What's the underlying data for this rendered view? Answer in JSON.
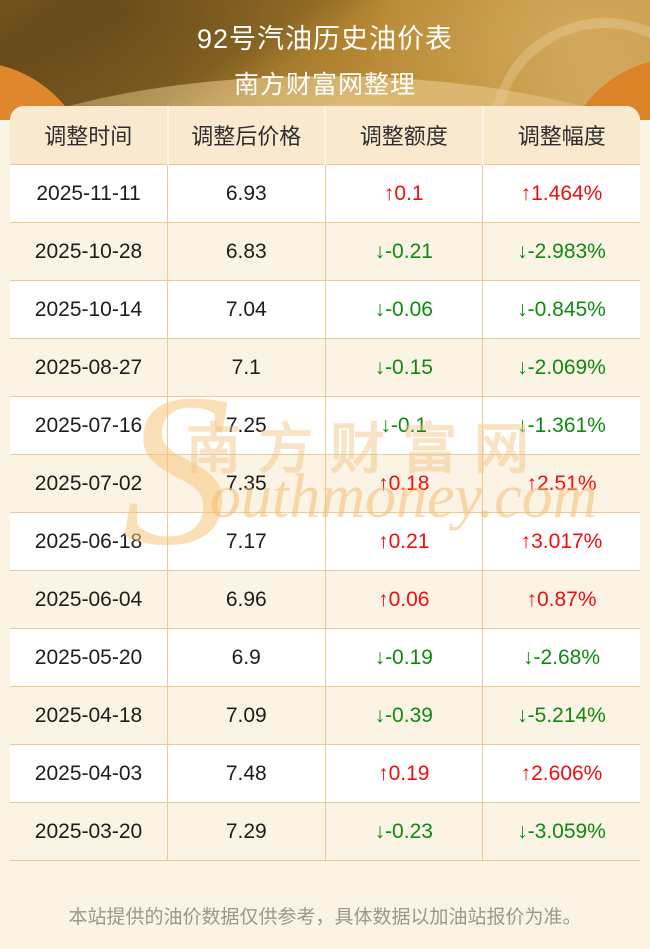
{
  "header": {
    "title_line1": "92号汽油历史油价表",
    "title_line2": "南方财富网整理"
  },
  "table": {
    "columns": [
      "调整时间",
      "调整后价格",
      "调整额度",
      "调整幅度"
    ],
    "rows": [
      {
        "date": "2025-11-11",
        "price": "6.93",
        "change": "↑0.1",
        "percent": "↑1.464%",
        "direction": "up"
      },
      {
        "date": "2025-10-28",
        "price": "6.83",
        "change": "↓-0.21",
        "percent": "↓-2.983%",
        "direction": "down"
      },
      {
        "date": "2025-10-14",
        "price": "7.04",
        "change": "↓-0.06",
        "percent": "↓-0.845%",
        "direction": "down"
      },
      {
        "date": "2025-08-27",
        "price": "7.1",
        "change": "↓-0.15",
        "percent": "↓-2.069%",
        "direction": "down"
      },
      {
        "date": "2025-07-16",
        "price": "7.25",
        "change": "↓-0.1",
        "percent": "↓-1.361%",
        "direction": "down"
      },
      {
        "date": "2025-07-02",
        "price": "7.35",
        "change": "↑0.18",
        "percent": "↑2.51%",
        "direction": "up"
      },
      {
        "date": "2025-06-18",
        "price": "7.17",
        "change": "↑0.21",
        "percent": "↑3.017%",
        "direction": "up"
      },
      {
        "date": "2025-06-04",
        "price": "6.96",
        "change": "↑0.06",
        "percent": "↑0.87%",
        "direction": "up"
      },
      {
        "date": "2025-05-20",
        "price": "6.9",
        "change": "↓-0.19",
        "percent": "↓-2.68%",
        "direction": "down"
      },
      {
        "date": "2025-04-18",
        "price": "7.09",
        "change": "↓-0.39",
        "percent": "↓-5.214%",
        "direction": "down"
      },
      {
        "date": "2025-04-03",
        "price": "7.48",
        "change": "↑0.19",
        "percent": "↑2.606%",
        "direction": "up"
      },
      {
        "date": "2025-03-20",
        "price": "7.29",
        "change": "↓-0.23",
        "percent": "↓-3.059%",
        "direction": "down"
      }
    ]
  },
  "watermark": {
    "s": "S",
    "cn": "南方财富网",
    "en": "outhmoney.com"
  },
  "footer": {
    "note": "本站提供的油价数据仅供参考，具体数据以加油站报价为准。"
  },
  "colors": {
    "up": "#f50d0d",
    "down": "#0f8a10",
    "banner_gold": "#b08432",
    "banner_orange": "#e0862d",
    "header_cell_bg": "#f8e9cf",
    "row_alt_bg": "#fbf3e4",
    "grid_border": "#eccb97",
    "page_bg": "#fbf3e3",
    "footer_text": "#9c978d"
  }
}
